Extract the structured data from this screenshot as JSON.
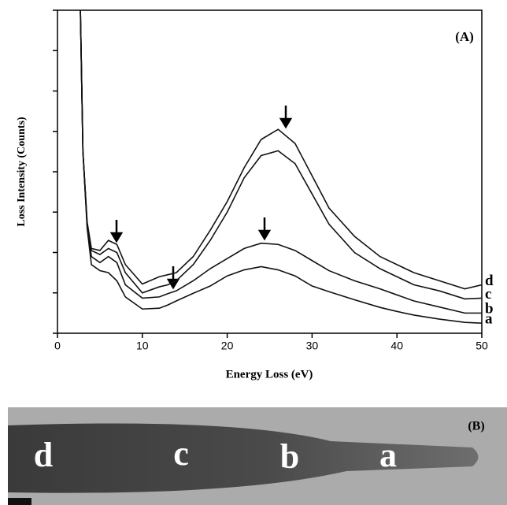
{
  "chart_data": {
    "type": "line",
    "annotation": "(A)",
    "xlabel": "Energy Loss (eV)",
    "ylabel": "Loss Intensity (Counts)",
    "x": [
      2.7,
      3,
      3.5,
      4,
      5,
      6,
      7,
      8,
      10,
      12,
      13,
      14,
      16,
      18,
      20,
      22,
      24,
      26,
      28,
      30,
      32,
      35,
      38,
      40,
      42,
      45,
      48,
      50
    ],
    "series": [
      {
        "name": "a",
        "color": "#111111",
        "values": [
          8,
          4.5,
          2.6,
          1.7,
          1.55,
          1.5,
          1.3,
          0.9,
          0.6,
          0.62,
          0.7,
          0.8,
          0.99,
          1.17,
          1.42,
          1.57,
          1.65,
          1.57,
          1.42,
          1.17,
          1.03,
          0.83,
          0.64,
          0.54,
          0.45,
          0.35,
          0.27,
          0.25
        ]
      },
      {
        "name": "b",
        "color": "#111111",
        "values": [
          8,
          4.5,
          2.65,
          1.9,
          1.75,
          1.9,
          1.75,
          1.2,
          0.87,
          0.9,
          0.98,
          1.05,
          1.3,
          1.6,
          1.85,
          2.1,
          2.23,
          2.2,
          2.05,
          1.8,
          1.55,
          1.3,
          1.1,
          0.95,
          0.8,
          0.65,
          0.5,
          0.5
        ]
      },
      {
        "name": "c",
        "color": "#111111",
        "values": [
          8,
          4.5,
          2.7,
          2.05,
          1.95,
          2.1,
          2.0,
          1.5,
          1.0,
          1.15,
          1.2,
          1.3,
          1.7,
          2.3,
          3.0,
          3.85,
          4.4,
          4.52,
          4.2,
          3.45,
          2.7,
          2.0,
          1.6,
          1.4,
          1.2,
          1.05,
          0.85,
          0.87
        ]
      },
      {
        "name": "d",
        "color": "#111111",
        "values": [
          8,
          4.5,
          2.75,
          2.1,
          2.05,
          2.3,
          2.2,
          1.7,
          1.22,
          1.4,
          1.45,
          1.5,
          1.9,
          2.55,
          3.26,
          4.1,
          4.8,
          5.05,
          4.7,
          3.9,
          3.1,
          2.4,
          1.9,
          1.7,
          1.5,
          1.3,
          1.1,
          1.2
        ]
      }
    ],
    "xlim": [
      0,
      50
    ],
    "xticks": [
      0,
      10,
      20,
      30,
      40,
      50
    ],
    "ylim": [
      0,
      8
    ],
    "yticks": [
      0,
      1,
      2,
      3,
      4,
      5,
      6,
      7,
      8
    ],
    "grid": false
  },
  "panel_b": {
    "annotation": "(B)",
    "regions": [
      "d",
      "c",
      "b",
      "a"
    ]
  }
}
